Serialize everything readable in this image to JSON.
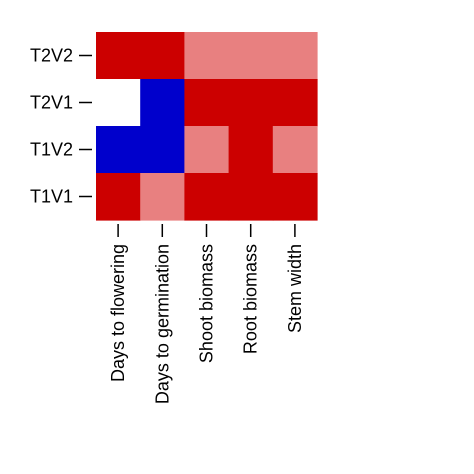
{
  "chart_data": {
    "type": "heatmap",
    "title": "",
    "xlabel": "",
    "ylabel": "",
    "x_categories": [
      "Days to flowering",
      "Days to germination",
      "Shoot biomass",
      "Root biomass",
      "Stem width"
    ],
    "y_categories": [
      "T2V2",
      "T2V1",
      "T1V2",
      "T1V1"
    ],
    "palette": {
      "strong_positive": "#cc0000",
      "weak_positive": "#e88080",
      "neutral": "#ffffff",
      "strong_negative": "#0000cc"
    },
    "matrix": [
      [
        "strong_positive",
        "strong_positive",
        "weak_positive",
        "weak_positive",
        "weak_positive"
      ],
      [
        "neutral",
        "strong_negative",
        "strong_positive",
        "strong_positive",
        "strong_positive"
      ],
      [
        "strong_negative",
        "strong_negative",
        "weak_positive",
        "strong_positive",
        "weak_positive"
      ],
      [
        "strong_positive",
        "weak_positive",
        "strong_positive",
        "strong_positive",
        "strong_positive"
      ]
    ],
    "grid": false,
    "legend": "none"
  }
}
